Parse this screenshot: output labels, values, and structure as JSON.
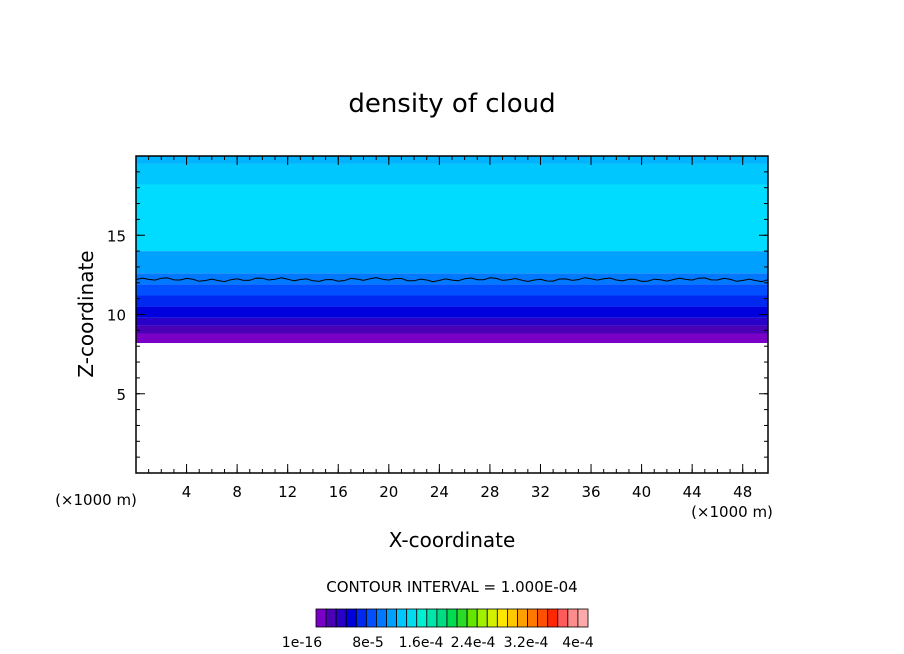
{
  "chart_data": {
    "type": "heatmap",
    "title": "density of cloud",
    "xlabel": "X-coordinate",
    "ylabel": "Z-coordinate",
    "x_unit_left": "(×1000 m)",
    "x_unit_right": "(×1000 m)",
    "xlim": [
      0,
      50
    ],
    "ylim": [
      0,
      20
    ],
    "x_ticks": [
      4,
      8,
      12,
      16,
      20,
      24,
      28,
      32,
      36,
      40,
      44,
      48
    ],
    "x_tick_labels": [
      "4",
      "8",
      "12",
      "16",
      "20",
      "24",
      "28",
      "32",
      "36",
      "40",
      "44",
      "48"
    ],
    "y_ticks": [
      5,
      10,
      15
    ],
    "y_tick_labels": [
      "5",
      "10",
      "15"
    ],
    "contour_interval_label": "CONTOUR INTERVAL = 1.000E-04",
    "colorbar_labels": [
      "1e-16",
      "8e-5",
      "1.6e-4",
      "2.4e-4",
      "3.2e-4",
      "4e-4"
    ],
    "colorbar_colors": [
      "#7a00c8",
      "#4a00b4",
      "#2800c8",
      "#0000dc",
      "#0028f0",
      "#0050ff",
      "#0078ff",
      "#00a0ff",
      "#00c8ff",
      "#00dcf0",
      "#00f0d2",
      "#00e6aa",
      "#00dc82",
      "#00dc50",
      "#28dc28",
      "#64e600",
      "#a0f000",
      "#d2f000",
      "#ffe600",
      "#ffc800",
      "#ffa000",
      "#ff7800",
      "#ff5000",
      "#ff2800",
      "#ff5a5a",
      "#ff8c8c",
      "#ffaaaa"
    ],
    "cloud_layers": [
      {
        "z_bottom": 8.2,
        "z_top": 8.8,
        "color": "#7a00c8"
      },
      {
        "z_bottom": 8.8,
        "z_top": 9.3,
        "color": "#4a00b4"
      },
      {
        "z_bottom": 9.3,
        "z_top": 9.8,
        "color": "#2800c8"
      },
      {
        "z_bottom": 9.8,
        "z_top": 10.5,
        "color": "#0000dc"
      },
      {
        "z_bottom": 10.5,
        "z_top": 11.2,
        "color": "#0028f0"
      },
      {
        "z_bottom": 11.2,
        "z_top": 11.9,
        "color": "#0050ff"
      },
      {
        "z_bottom": 11.9,
        "z_top": 12.6,
        "color": "#0078ff"
      },
      {
        "z_bottom": 12.6,
        "z_top": 14.0,
        "color": "#00a0ff"
      },
      {
        "z_bottom": 14.0,
        "z_top": 18.2,
        "color": "#00dcff"
      },
      {
        "z_bottom": 18.2,
        "z_top": 19.5,
        "color": "#00c8ff"
      },
      {
        "z_bottom": 19.5,
        "z_top": 20.0,
        "color": "#00b4ff"
      }
    ],
    "contour_line_z": 12.2
  }
}
